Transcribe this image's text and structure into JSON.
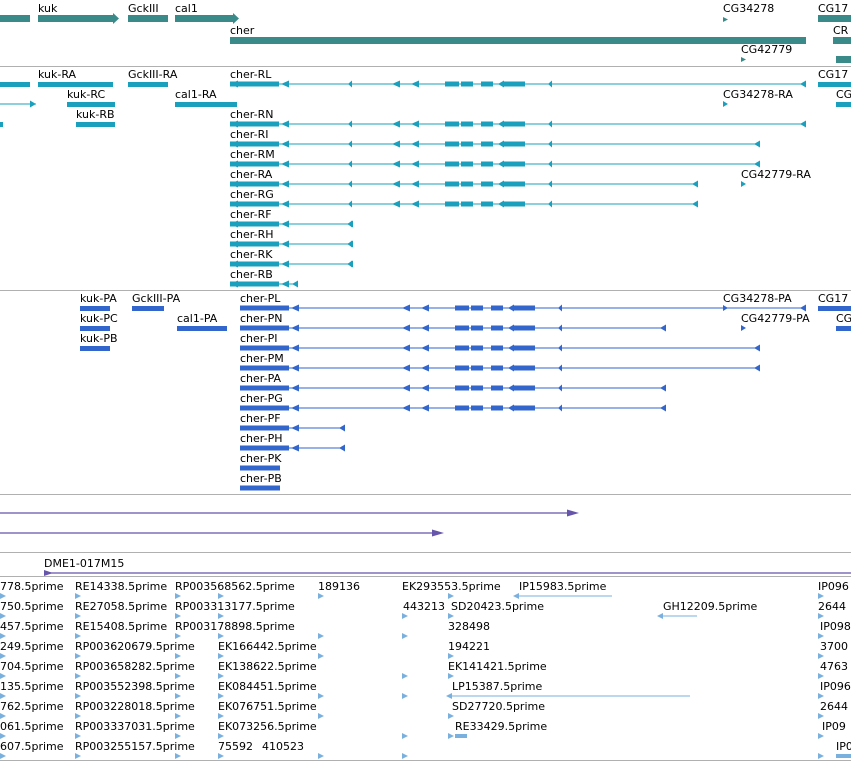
{
  "colors": {
    "genes": "#3a8a8a",
    "transcripts": "#1aa0bd",
    "proteins": "#3366cc",
    "purple": "#6655aa",
    "ests": "#7ab0dd",
    "border": "#b0b0b0"
  },
  "gene_track": {
    "labels": [
      {
        "text": "kuk"
      },
      {
        "text": "GckIII"
      },
      {
        "text": "cal1"
      },
      {
        "text": "CG34278"
      },
      {
        "text": "CG17"
      },
      {
        "text": "cher"
      },
      {
        "text": "CR"
      },
      {
        "text": "CG42779"
      }
    ]
  },
  "transcript_track": {
    "labels": [
      {
        "text": "kuk-RA"
      },
      {
        "text": "GckIII-RA"
      },
      {
        "text": "cher-RL"
      },
      {
        "text": "CG17"
      },
      {
        "text": "kuk-RC"
      },
      {
        "text": "cal1-RA"
      },
      {
        "text": "CG34278-RA"
      },
      {
        "text": "CG"
      },
      {
        "text": "kuk-RB"
      },
      {
        "text": "cher-RN"
      },
      {
        "text": "cher-RI"
      },
      {
        "text": "cher-RM"
      },
      {
        "text": "cher-RA"
      },
      {
        "text": "CG42779-RA"
      },
      {
        "text": "cher-RG"
      },
      {
        "text": "cher-RF"
      },
      {
        "text": "cher-RH"
      },
      {
        "text": "cher-RK"
      },
      {
        "text": "cher-RB"
      }
    ]
  },
  "protein_track": {
    "labels": [
      {
        "text": "kuk-PA"
      },
      {
        "text": "GckIII-PA"
      },
      {
        "text": "cher-PL"
      },
      {
        "text": "CG34278-PA"
      },
      {
        "text": "CG17"
      },
      {
        "text": "kuk-PC"
      },
      {
        "text": "cal1-PA"
      },
      {
        "text": "cher-PN"
      },
      {
        "text": "CG42779-PA"
      },
      {
        "text": "CG"
      },
      {
        "text": "kuk-PB"
      },
      {
        "text": "cher-PI"
      },
      {
        "text": "cher-PM"
      },
      {
        "text": "cher-PA"
      },
      {
        "text": "cher-PG"
      },
      {
        "text": "cher-PF"
      },
      {
        "text": "cher-PH"
      },
      {
        "text": "cher-PK"
      },
      {
        "text": "cher-PB"
      }
    ]
  },
  "clone_track": {
    "labels": [
      {
        "text": "DME1-017M15"
      }
    ]
  },
  "est_track": {
    "labels": [
      {
        "text": "778.5prime"
      },
      {
        "text": "RE14338.5prime"
      },
      {
        "text": "RP003568562.5prime"
      },
      {
        "text": "189136"
      },
      {
        "text": "EK293553.5prime"
      },
      {
        "text": "IP15983.5prime"
      },
      {
        "text": "IP096"
      },
      {
        "text": "750.5prime"
      },
      {
        "text": "RE27058.5prime"
      },
      {
        "text": "RP003313177.5prime"
      },
      {
        "text": "443213"
      },
      {
        "text": "SD20423.5prime"
      },
      {
        "text": "GH12209.5prime"
      },
      {
        "text": "2644"
      },
      {
        "text": "457.5prime"
      },
      {
        "text": "RE15408.5prime"
      },
      {
        "text": "RP003178898.5prime"
      },
      {
        "text": "328498"
      },
      {
        "text": "IP098"
      },
      {
        "text": "249.5prime"
      },
      {
        "text": "RP003620679.5prime"
      },
      {
        "text": "EK166442.5prime"
      },
      {
        "text": "194221"
      },
      {
        "text": "3700"
      },
      {
        "text": "704.5prime"
      },
      {
        "text": "RP003658282.5prime"
      },
      {
        "text": "EK138622.5prime"
      },
      {
        "text": "EK141421.5prime"
      },
      {
        "text": "4763"
      },
      {
        "text": "135.5prime"
      },
      {
        "text": "RP003552398.5prime"
      },
      {
        "text": "EK084451.5prime"
      },
      {
        "text": "LP15387.5prime"
      },
      {
        "text": "IP096"
      },
      {
        "text": "762.5prime"
      },
      {
        "text": "RP003228018.5prime"
      },
      {
        "text": "EK076751.5prime"
      },
      {
        "text": "SD27720.5prime"
      },
      {
        "text": "2644"
      },
      {
        "text": "061.5prime"
      },
      {
        "text": "RP003337031.5prime"
      },
      {
        "text": "EK073256.5prime"
      },
      {
        "text": "RE33429.5prime"
      },
      {
        "text": "IP09"
      },
      {
        "text": "607.5prime"
      },
      {
        "text": "RP003255157.5prime"
      },
      {
        "text": "75592"
      },
      {
        "text": "410523"
      },
      {
        "text": "IP0"
      }
    ]
  }
}
